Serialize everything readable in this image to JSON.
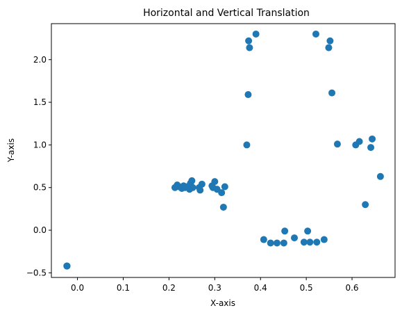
{
  "chart_data": {
    "type": "scatter",
    "title": "Horizontal and Vertical Translation",
    "xlabel": "X-axis",
    "ylabel": "Y-axis",
    "xlim": [
      -0.057,
      0.694
    ],
    "ylim": [
      -0.554,
      2.422
    ],
    "xticks": [
      0.0,
      0.1,
      0.2,
      0.3,
      0.4,
      0.5,
      0.6
    ],
    "xtick_labels": [
      "0.0",
      "0.1",
      "0.2",
      "0.3",
      "0.4",
      "0.5",
      "0.6"
    ],
    "yticks": [
      -0.5,
      0.0,
      0.5,
      1.0,
      1.5,
      2.0
    ],
    "ytick_labels": [
      "−0.5",
      "0.0",
      "0.5",
      "1.0",
      "1.5",
      "2.0"
    ],
    "grid": false,
    "marker_color": "#1f77b4",
    "points": [
      [
        -0.023,
        -0.42
      ],
      [
        -0.023,
        -0.42
      ],
      [
        -0.023,
        -0.42
      ],
      [
        -0.023,
        -0.42
      ],
      [
        0.213,
        0.5
      ],
      [
        0.218,
        0.53
      ],
      [
        0.222,
        0.51
      ],
      [
        0.228,
        0.49
      ],
      [
        0.232,
        0.52
      ],
      [
        0.235,
        0.5
      ],
      [
        0.24,
        0.51
      ],
      [
        0.245,
        0.48
      ],
      [
        0.247,
        0.55
      ],
      [
        0.25,
        0.58
      ],
      [
        0.252,
        0.5
      ],
      [
        0.266,
        0.5
      ],
      [
        0.268,
        0.47
      ],
      [
        0.272,
        0.54
      ],
      [
        0.294,
        0.52
      ],
      [
        0.296,
        0.5
      ],
      [
        0.3,
        0.57
      ],
      [
        0.305,
        0.48
      ],
      [
        0.315,
        0.44
      ],
      [
        0.319,
        0.27
      ],
      [
        0.322,
        0.51
      ],
      [
        0.37,
        1.0
      ],
      [
        0.373,
        1.59
      ],
      [
        0.374,
        2.22
      ],
      [
        0.376,
        2.14
      ],
      [
        0.39,
        2.3
      ],
      [
        0.407,
        -0.11
      ],
      [
        0.422,
        -0.15
      ],
      [
        0.436,
        -0.15
      ],
      [
        0.451,
        -0.15
      ],
      [
        0.453,
        -0.01
      ],
      [
        0.474,
        -0.09
      ],
      [
        0.495,
        -0.14
      ],
      [
        0.503,
        -0.01
      ],
      [
        0.508,
        -0.14
      ],
      [
        0.521,
        2.3
      ],
      [
        0.523,
        -0.14
      ],
      [
        0.539,
        -0.11
      ],
      [
        0.549,
        2.14
      ],
      [
        0.552,
        2.22
      ],
      [
        0.556,
        1.61
      ],
      [
        0.568,
        1.01
      ],
      [
        0.608,
        1.0
      ],
      [
        0.616,
        1.04
      ],
      [
        0.629,
        0.3
      ],
      [
        0.641,
        0.97
      ],
      [
        0.644,
        1.07
      ],
      [
        0.662,
        0.63
      ]
    ]
  }
}
